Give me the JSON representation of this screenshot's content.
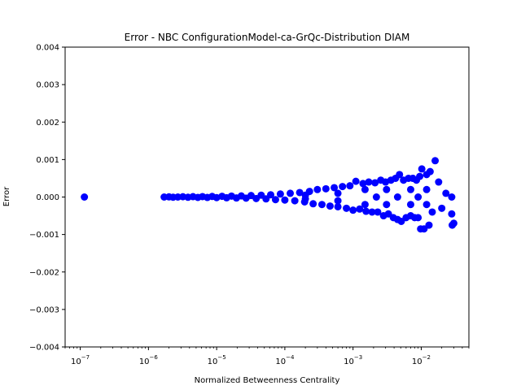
{
  "chart_data": {
    "type": "scatter",
    "title": "Error - NBC ConfigurationModel-ca-GrQc-Distribution DIAM",
    "xlabel": "Normalized Betweenness Centrality",
    "ylabel": "Error",
    "xscale": "log",
    "xlim": [
      6e-08,
      0.05
    ],
    "ylim": [
      -0.004,
      0.004
    ],
    "x_ticks": [
      {
        "value": 1e-07,
        "base": "10",
        "exp": "−7"
      },
      {
        "value": 1e-06,
        "base": "10",
        "exp": "−6"
      },
      {
        "value": 1e-05,
        "base": "10",
        "exp": "−5"
      },
      {
        "value": 0.0001,
        "base": "10",
        "exp": "−4"
      },
      {
        "value": 0.001,
        "base": "10",
        "exp": "−3"
      },
      {
        "value": 0.01,
        "base": "10",
        "exp": "−2"
      }
    ],
    "y_ticks": [
      {
        "value": 0.004,
        "label": "0.004"
      },
      {
        "value": 0.003,
        "label": "0.003"
      },
      {
        "value": 0.002,
        "label": "0.002"
      },
      {
        "value": 0.001,
        "label": "0.001"
      },
      {
        "value": 0.0,
        "label": "0.000"
      },
      {
        "value": -0.001,
        "label": "−0.001"
      },
      {
        "value": -0.002,
        "label": "−0.002"
      },
      {
        "value": -0.003,
        "label": "−0.003"
      },
      {
        "value": -0.004,
        "label": "−0.004"
      }
    ],
    "grid": false,
    "marker_color": "#0000ff",
    "series": [
      {
        "points": [
          [
            1.15e-07,
            0.0
          ],
          [
            1.7e-06,
            0.0
          ],
          [
            2e-06,
            5e-06
          ],
          [
            2.3e-06,
            -5e-06
          ],
          [
            2.7e-06,
            0.0
          ],
          [
            3.2e-06,
            8e-06
          ],
          [
            3.8e-06,
            -6e-06
          ],
          [
            4.5e-06,
            1e-05
          ],
          [
            5.3e-06,
            -1e-05
          ],
          [
            6.2e-06,
            1.2e-05
          ],
          [
            7.3e-06,
            -1.2e-05
          ],
          [
            8.6e-06,
            1.5e-05
          ],
          [
            1e-05,
            -1.5e-05
          ],
          [
            1.2e-05,
            2e-05
          ],
          [
            1.4e-05,
            -2e-05
          ],
          [
            1.65e-05,
            2.5e-05
          ],
          [
            1.95e-05,
            -2.5e-05
          ],
          [
            2.3e-05,
            3e-05
          ],
          [
            2.7e-05,
            -3e-05
          ],
          [
            3.2e-05,
            4e-05
          ],
          [
            3.8e-05,
            -4e-05
          ],
          [
            4.5e-05,
            5e-05
          ],
          [
            5.3e-05,
            -5e-05
          ],
          [
            6.2e-05,
            6e-05
          ],
          [
            7.3e-05,
            -7e-05
          ],
          [
            8.6e-05,
            8e-05
          ],
          [
            0.0001,
            -8e-05
          ],
          [
            0.00012,
            0.0001
          ],
          [
            0.00014,
            -0.0001
          ],
          [
            0.000165,
            0.00012
          ],
          [
            0.000195,
            -0.00013
          ],
          [
            0.00023,
            0.00015
          ],
          [
            0.00026,
            -0.00018
          ],
          [
            0.0003,
            0.0002
          ],
          [
            0.00035,
            -0.0002
          ],
          [
            0.0004,
            0.00022
          ],
          [
            0.00046,
            -0.00024
          ],
          [
            0.00053,
            0.00025
          ],
          [
            0.0006,
            -0.00026
          ],
          [
            0.0007,
            0.00028
          ],
          [
            0.0008,
            -0.0003
          ],
          [
            0.0009,
            0.0003
          ],
          [
            0.001,
            -0.00035
          ],
          [
            0.0011,
            0.00042
          ],
          [
            0.00125,
            -0.00032
          ],
          [
            0.0014,
            0.00036
          ],
          [
            0.00155,
            -0.00038
          ],
          [
            0.0017,
            0.0004
          ],
          [
            0.0019,
            -0.0004
          ],
          [
            0.0021,
            0.00038
          ],
          [
            0.0023,
            -0.0004
          ],
          [
            0.00255,
            0.00045
          ],
          [
            0.0028,
            -0.0005
          ],
          [
            0.003,
            0.0004
          ],
          [
            0.0033,
            -0.00045
          ],
          [
            0.0036,
            0.00045
          ],
          [
            0.0039,
            -0.00055
          ],
          [
            0.0042,
            0.0005
          ],
          [
            0.0045,
            -0.0006
          ],
          [
            0.0048,
            0.0006
          ],
          [
            0.0051,
            -0.00065
          ],
          [
            0.0055,
            0.00045
          ],
          [
            0.006,
            -0.00055
          ],
          [
            0.0065,
            0.0005
          ],
          [
            0.007,
            -0.0005
          ],
          [
            0.0075,
            0.0005
          ],
          [
            0.008,
            -0.00055
          ],
          [
            0.0085,
            0.00045
          ],
          [
            0.009,
            -0.00055
          ],
          [
            0.0095,
            0.00055
          ],
          [
            0.0098,
            -0.00085
          ],
          [
            0.0102,
            0.00075
          ],
          [
            0.011,
            -0.00085
          ],
          [
            0.012,
            0.0006
          ],
          [
            0.013,
            -0.00075
          ],
          [
            0.0135,
            0.00068
          ],
          [
            0.0145,
            -0.0004
          ],
          [
            0.016,
            0.00097
          ],
          [
            0.018,
            0.0004
          ],
          [
            0.02,
            -0.0003
          ],
          [
            0.023,
            0.0001
          ],
          [
            0.028,
            0.0
          ],
          [
            0.028,
            -0.00045
          ],
          [
            0.0285,
            -0.00075
          ],
          [
            0.03,
            -0.0007
          ],
          [
            0.0031,
            0.0002
          ],
          [
            0.0031,
            -0.0002
          ],
          [
            0.0015,
            0.0002
          ],
          [
            0.0015,
            -0.0002
          ],
          [
            0.007,
            0.0002
          ],
          [
            0.007,
            -0.0002
          ],
          [
            0.012,
            0.0002
          ],
          [
            0.012,
            -0.0002
          ],
          [
            0.0022,
            0.0
          ],
          [
            0.0045,
            0.0
          ],
          [
            0.009,
            0.0
          ],
          [
            0.0006,
            0.0001
          ],
          [
            0.0006,
            -0.0001
          ],
          [
            0.0002,
            5e-05
          ],
          [
            0.0002,
            -5e-05
          ]
        ]
      }
    ]
  }
}
